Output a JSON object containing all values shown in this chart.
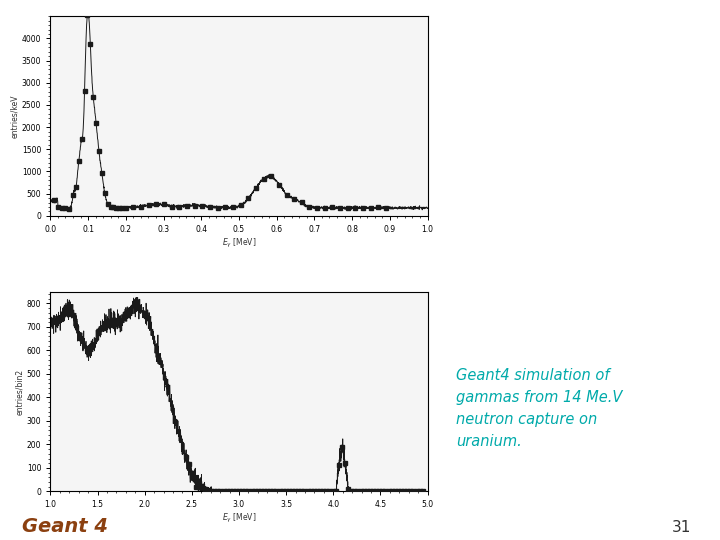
{
  "bg_color": "#ffffff",
  "plot_bg": "#f8f8f8",
  "plot1": {
    "ylabel": "entries/keV",
    "xlabel": "E_{#gamma} [MeV]",
    "xlim": [
      0,
      1.0
    ],
    "ylim": [
      0,
      4500
    ],
    "yticks": [
      0,
      500,
      1000,
      1500,
      2000,
      2500,
      3000,
      3500,
      4000
    ],
    "xticks": [
      0.0,
      0.1,
      0.2,
      0.3,
      0.4,
      0.5,
      0.6,
      0.7,
      0.8,
      0.9,
      1.0
    ]
  },
  "plot2": {
    "ylabel": "entries/bin2",
    "xlabel": "E_{#gamma} [MeV]",
    "xlim": [
      1.0,
      5.0
    ],
    "ylim": [
      0,
      850
    ],
    "yticks": [
      0,
      100,
      200,
      300,
      400,
      500,
      600,
      700,
      800
    ],
    "xticks": [
      1.0,
      1.5,
      2.0,
      2.5,
      3.0,
      3.5,
      4.0,
      4.5,
      5.0
    ]
  },
  "annotation_text": "Geant4 simulation of\ngammas from 14 Me.V\nneutron capture on\nuranium.",
  "annotation_color": "#00AAAA",
  "geant4_text": "Geant 4",
  "geant4_color": "#8B4010",
  "slide_number": "31",
  "line_color": "#1a1a1a"
}
